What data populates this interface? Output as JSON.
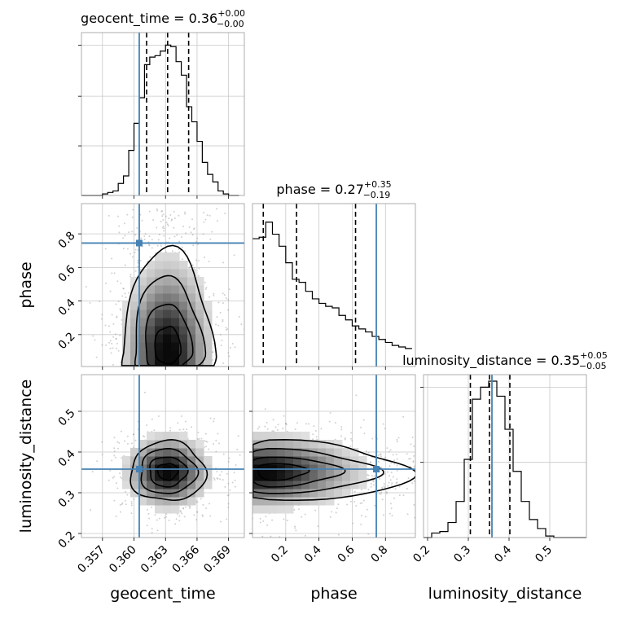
{
  "chart_data": {
    "type": "corner",
    "grid": true,
    "parameters": [
      "geocent_time",
      "phase",
      "luminosity_distance"
    ],
    "truth": {
      "geocent_time": 0.3605,
      "phase": 0.745,
      "luminosity_distance": 0.358
    },
    "panels": [
      {
        "id": "hist-geocent_time",
        "type": "histogram",
        "param": "geocent_time",
        "title": {
          "main": "geocent_time = 0.36",
          "sup": "+0.00",
          "sub": "−0.00"
        },
        "xlim": [
          0.355,
          0.3705
        ],
        "quantiles": [
          0.3612,
          0.3632,
          0.3652
        ],
        "ytick_counts": [
          0.33,
          0.66,
          1.0
        ],
        "bins": [
          0.355,
          0.3555,
          0.356,
          0.3565,
          0.357,
          0.3575,
          0.358,
          0.3585,
          0.359,
          0.3595,
          0.36,
          0.3605,
          0.361,
          0.3615,
          0.362,
          0.3625,
          0.363,
          0.3635,
          0.364,
          0.3645,
          0.365,
          0.3655,
          0.366,
          0.3665,
          0.367,
          0.3675,
          0.368,
          0.3685,
          0.369,
          0.3695,
          0.37
        ],
        "counts": [
          0,
          0,
          0,
          0,
          0.01,
          0.02,
          0.03,
          0.08,
          0.13,
          0.3,
          0.48,
          0.65,
          0.87,
          0.92,
          0.93,
          0.96,
          1.0,
          0.99,
          0.89,
          0.8,
          0.59,
          0.49,
          0.36,
          0.22,
          0.14,
          0.09,
          0.03,
          0.01,
          0.0,
          0
        ]
      },
      {
        "id": "hist-phase",
        "type": "histogram",
        "param": "phase",
        "title": {
          "main": "phase = 0.27",
          "sup": "+0.35",
          "sub": "−0.19"
        },
        "xlim": [
          0.0,
          0.98
        ],
        "quantiles": [
          0.065,
          0.265,
          0.62
        ],
        "ytick_counts": [],
        "bins": [
          0.0,
          0.04,
          0.08,
          0.12,
          0.16,
          0.2,
          0.24,
          0.28,
          0.32,
          0.36,
          0.4,
          0.44,
          0.48,
          0.52,
          0.56,
          0.6,
          0.64,
          0.68,
          0.72,
          0.76,
          0.8,
          0.84,
          0.88,
          0.92,
          0.96
        ],
        "counts": [
          0.85,
          0.86,
          0.96,
          0.88,
          0.8,
          0.69,
          0.58,
          0.56,
          0.5,
          0.45,
          0.42,
          0.4,
          0.39,
          0.34,
          0.31,
          0.27,
          0.25,
          0.23,
          0.2,
          0.18,
          0.16,
          0.14,
          0.13,
          0.12
        ]
      },
      {
        "id": "hist-luminosity_distance",
        "type": "histogram",
        "param": "luminosity_distance",
        "title": {
          "main": "luminosity_distance = 0.35",
          "sup": "+0.05",
          "sub": "−0.05"
        },
        "xlim": [
          0.19,
          0.59
        ],
        "quantiles": [
          0.305,
          0.352,
          0.402
        ],
        "ytick_counts": [
          0.5,
          1.0
        ],
        "bins": [
          0.19,
          0.21,
          0.23,
          0.25,
          0.27,
          0.29,
          0.31,
          0.33,
          0.35,
          0.37,
          0.39,
          0.41,
          0.43,
          0.45,
          0.47,
          0.49,
          0.51,
          0.53,
          0.55,
          0.57,
          0.59
        ],
        "counts": [
          0.0,
          0.03,
          0.04,
          0.1,
          0.24,
          0.52,
          0.92,
          1.0,
          1.04,
          0.94,
          0.72,
          0.44,
          0.24,
          0.12,
          0.06,
          0.01,
          0,
          0,
          0,
          0
        ]
      },
      {
        "id": "scatter-phase-vs-geocent_time",
        "type": "density2d",
        "x": "geocent_time",
        "y": "phase",
        "xlim": [
          0.355,
          0.3705
        ],
        "ylim": [
          0.01,
          0.98
        ],
        "mean": [
          0.3632,
          0.22
        ],
        "sd": [
          0.0022,
          0.17
        ]
      },
      {
        "id": "scatter-luminosity_distance-vs-geocent_time",
        "type": "density2d",
        "x": "geocent_time",
        "y": "luminosity_distance",
        "xlim": [
          0.355,
          0.3705
        ],
        "ylim": [
          0.19,
          0.59
        ],
        "mean": [
          0.3632,
          0.352
        ],
        "sd": [
          0.0021,
          0.047
        ]
      },
      {
        "id": "scatter-luminosity_distance-vs-phase",
        "type": "density2d",
        "x": "phase",
        "y": "luminosity_distance",
        "xlim": [
          0.0,
          0.98
        ],
        "ylim": [
          0.19,
          0.59
        ],
        "mean": [
          0.15,
          0.352
        ],
        "sd": [
          0.25,
          0.047
        ]
      }
    ],
    "axis_labels": {
      "x": [
        "geocent_time",
        "phase",
        "luminosity_distance"
      ],
      "y": [
        "phase",
        "luminosity_distance"
      ]
    },
    "ticks": {
      "geocent_time": [
        "0.357",
        "0.360",
        "0.363",
        "0.366",
        "0.369"
      ],
      "geocent_time_values": [
        0.357,
        0.36,
        0.363,
        0.366,
        0.369
      ],
      "phase_x": [
        "0.2",
        "0.4",
        "0.6",
        "0.8"
      ],
      "phase_x_values": [
        0.2,
        0.4,
        0.6,
        0.8
      ],
      "phase_y": [
        "0.2",
        "0.4",
        "0.6",
        "0.8"
      ],
      "phase_y_values": [
        0.2,
        0.4,
        0.6,
        0.8
      ],
      "luminosity_distance_x": [
        "0.2",
        "0.3",
        "0.4",
        "0.5"
      ],
      "luminosity_distance_x_values": [
        0.2,
        0.3,
        0.4,
        0.5
      ],
      "luminosity_distance_y": [
        "0.2",
        "0.3",
        "0.4",
        "0.5"
      ],
      "luminosity_distance_y_values": [
        0.2,
        0.3,
        0.4,
        0.5
      ]
    },
    "colors": {
      "truth": "#4682b4",
      "hist": "#000000",
      "grid": "#c8c8c8",
      "quantile": "#000000"
    }
  }
}
